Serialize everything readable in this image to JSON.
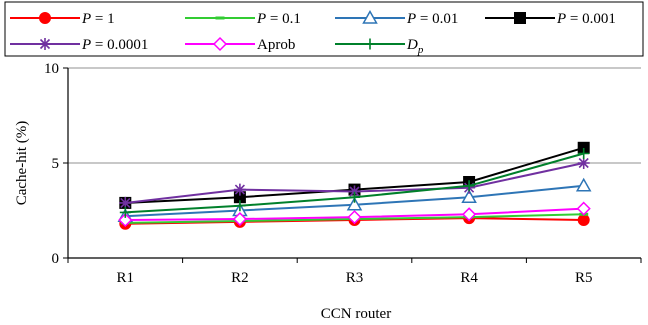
{
  "chart_data": {
    "type": "line",
    "categories": [
      "R1",
      "R2",
      "R3",
      "R4",
      "R5"
    ],
    "xlabel": "CCN router",
    "ylabel": "Cache-hit (%)",
    "ylim": [
      0,
      10
    ],
    "yticks": [
      0,
      5,
      10
    ],
    "grid": "horizontal lines at 5 and 10",
    "legend_placement": "top",
    "series": [
      {
        "name": "P = 1",
        "legend_prefix": "P",
        "legend_suffix": " = 1",
        "values": [
          1.8,
          1.9,
          2.0,
          2.1,
          2.0
        ],
        "color": "#ff0000",
        "marker": "circle"
      },
      {
        "name": "P = 0.1",
        "legend_prefix": "P",
        "legend_suffix": " = 0.1",
        "values": [
          1.85,
          1.95,
          2.05,
          2.15,
          2.3
        ],
        "color": "#33cc33",
        "marker": "dash"
      },
      {
        "name": "P = 0.01",
        "legend_prefix": "P",
        "legend_suffix": " = 0.01",
        "values": [
          2.2,
          2.5,
          2.8,
          3.2,
          3.8
        ],
        "color": "#2e75b6",
        "marker": "triangle"
      },
      {
        "name": "P = 0.001",
        "legend_prefix": "P",
        "legend_suffix": " = 0.001",
        "values": [
          2.9,
          3.2,
          3.6,
          4.0,
          5.8
        ],
        "color": "#000000",
        "marker": "square"
      },
      {
        "name": "P = 0.0001",
        "legend_prefix": "P",
        "legend_suffix": " = 0.0001",
        "values": [
          2.9,
          3.6,
          3.5,
          3.7,
          5.0
        ],
        "color": "#7030a0",
        "marker": "star"
      },
      {
        "name": "Aprob",
        "legend_prefix": "",
        "legend_suffix": "Aprob",
        "values": [
          2.0,
          2.05,
          2.15,
          2.3,
          2.6
        ],
        "color": "#ff00ff",
        "marker": "diamond"
      },
      {
        "name": "Dp",
        "legend_prefix": "D",
        "legend_sub": "p",
        "legend_suffix": "",
        "values": [
          2.4,
          2.75,
          3.2,
          3.8,
          5.5
        ],
        "color": "#00802b",
        "marker": "plus"
      }
    ]
  }
}
